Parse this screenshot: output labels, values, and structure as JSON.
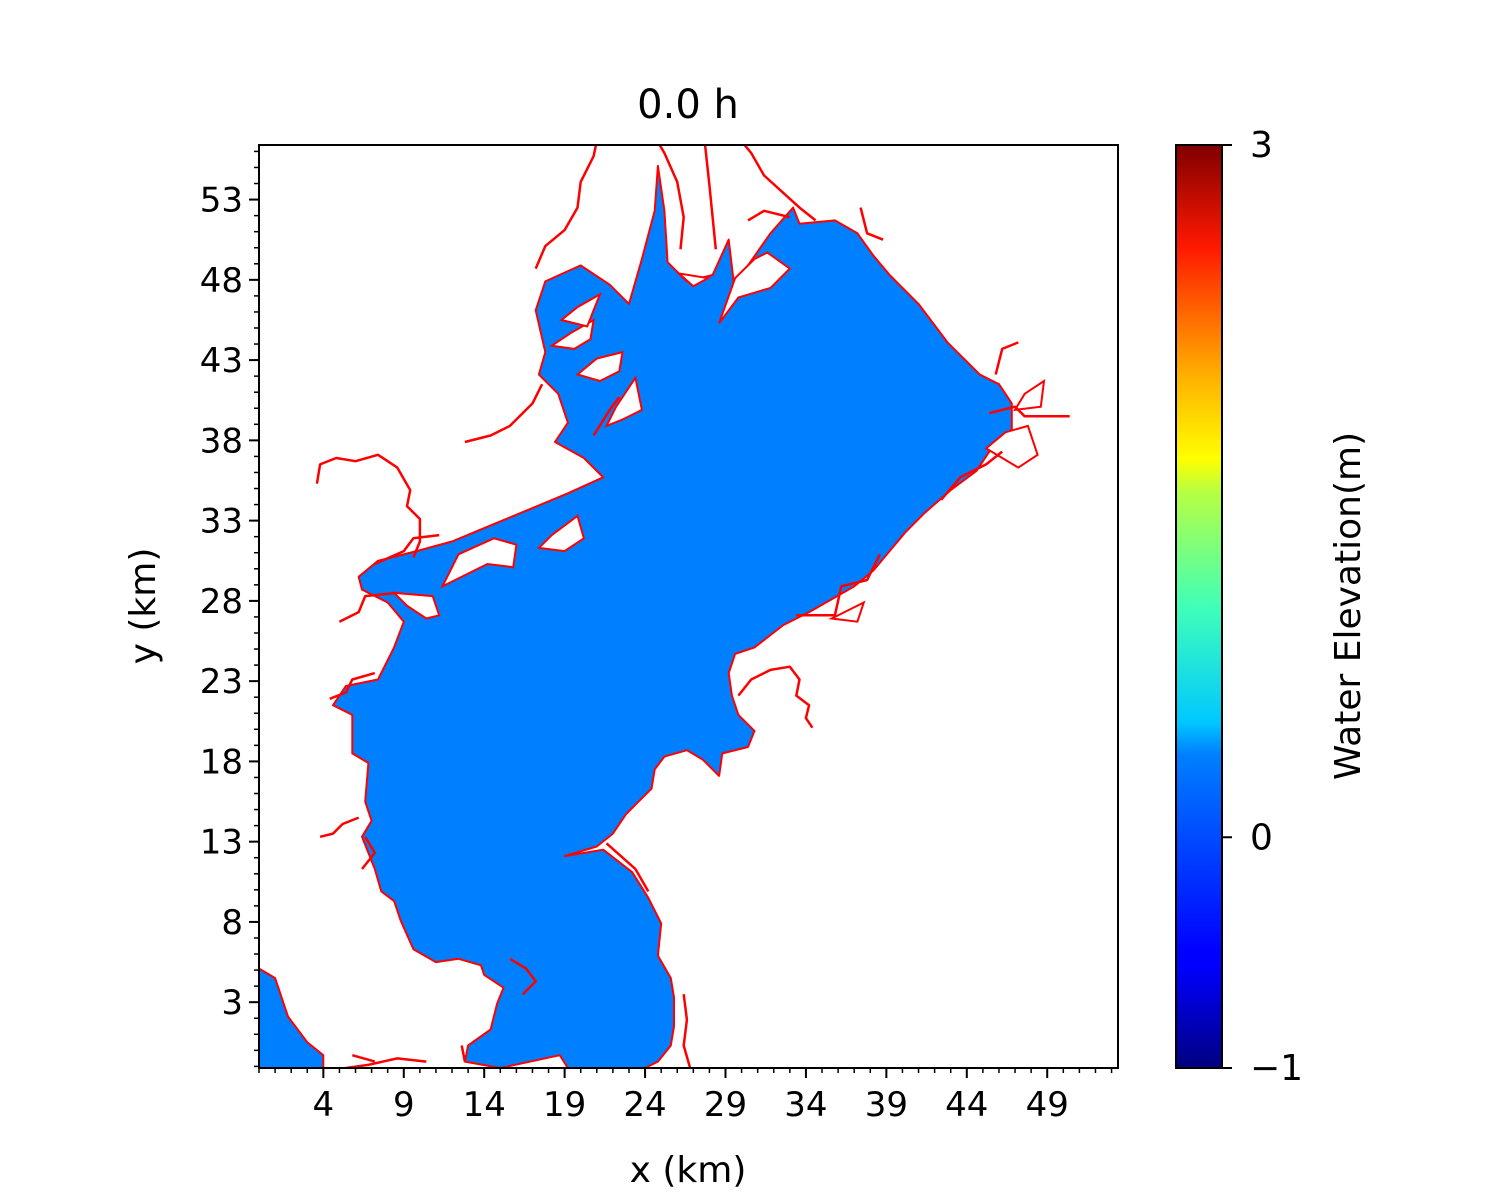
{
  "chart_data": {
    "type": "map",
    "title": "0.0 h",
    "xlabel": "x (km)",
    "ylabel": "y (km)",
    "xlim": [
      0,
      53.4
    ],
    "ylim": [
      -1.1,
      56.4
    ],
    "xticks": [
      4,
      9,
      14,
      19,
      24,
      29,
      34,
      39,
      44,
      49
    ],
    "yticks": [
      3,
      8,
      13,
      18,
      23,
      28,
      33,
      38,
      43,
      48,
      53
    ],
    "minor_tick_step": 1,
    "grid": false,
    "water_elevation_m": 0.0,
    "fill_color": "#0080ff",
    "shoreline_color": "#ff0000",
    "colorbar": {
      "label": "Water Elevation(m)",
      "colormap": "jet",
      "vmin": -1,
      "vmax": 3,
      "ticks": [
        -1,
        0,
        3
      ],
      "tick_labels": [
        "−1",
        "0",
        "3"
      ]
    },
    "water_polygon": [
      [
        19.2,
        -1.1
      ],
      [
        18.7,
        -0.3
      ],
      [
        15,
        -1.1
      ],
      [
        12.8,
        -0.7
      ],
      [
        13,
        0.3
      ],
      [
        14.4,
        1.3
      ],
      [
        14.8,
        2.9
      ],
      [
        15.2,
        3.9
      ],
      [
        14,
        4.7
      ],
      [
        13.8,
        5.3
      ],
      [
        12.4,
        5.7
      ],
      [
        11,
        5.5
      ],
      [
        9.6,
        6.3
      ],
      [
        8.8,
        8.1
      ],
      [
        8.4,
        9.3
      ],
      [
        7.6,
        9.9
      ],
      [
        7.2,
        11.3
      ],
      [
        6.4,
        13.3
      ],
      [
        7,
        14.3
      ],
      [
        6.6,
        15.5
      ],
      [
        6.8,
        17.9
      ],
      [
        5.8,
        18.5
      ],
      [
        5.8,
        20.9
      ],
      [
        4.6,
        21.5
      ],
      [
        5.4,
        22.7
      ],
      [
        7.4,
        23.1
      ],
      [
        8.4,
        25.1
      ],
      [
        9,
        26.7
      ],
      [
        8,
        27.9
      ],
      [
        6.4,
        28.7
      ],
      [
        6.2,
        29.5
      ],
      [
        7.4,
        30.5
      ],
      [
        9.8,
        31.1
      ],
      [
        12,
        31.7
      ],
      [
        14.4,
        32.7
      ],
      [
        16.8,
        33.7
      ],
      [
        19.2,
        34.7
      ],
      [
        21.4,
        35.7
      ],
      [
        20.2,
        36.9
      ],
      [
        18.4,
        37.9
      ],
      [
        19.2,
        39.1
      ],
      [
        18.6,
        40.9
      ],
      [
        17.4,
        42.1
      ],
      [
        17.8,
        43.5
      ],
      [
        17.2,
        46.1
      ],
      [
        17.8,
        47.9
      ],
      [
        20,
        48.9
      ],
      [
        21.8,
        47.7
      ],
      [
        23,
        46.5
      ],
      [
        23.8,
        49.3
      ],
      [
        24.6,
        52.3
      ],
      [
        24.8,
        55.1
      ],
      [
        25.2,
        52.3
      ],
      [
        25.4,
        49.1
      ],
      [
        26.6,
        47.9
      ],
      [
        28.2,
        48.3
      ],
      [
        29.2,
        50.5
      ],
      [
        29.6,
        47.1
      ],
      [
        30.4,
        48.9
      ],
      [
        31.8,
        50.9
      ],
      [
        33.2,
        52.5
      ],
      [
        33.6,
        51.5
      ],
      [
        35.8,
        51.7
      ],
      [
        37.2,
        50.9
      ],
      [
        38.2,
        49.5
      ],
      [
        39.2,
        48.3
      ],
      [
        41,
        46.5
      ],
      [
        42.8,
        44.1
      ],
      [
        44.8,
        42.1
      ],
      [
        46,
        41.5
      ],
      [
        46.8,
        40.3
      ],
      [
        46.8,
        38.7
      ],
      [
        45.4,
        37.3
      ],
      [
        44.6,
        36.1
      ],
      [
        43,
        34.9
      ],
      [
        41.4,
        33.5
      ],
      [
        40.2,
        32.3
      ],
      [
        39.2,
        31.1
      ],
      [
        38.2,
        29.9
      ],
      [
        37,
        28.9
      ],
      [
        35.6,
        28.1
      ],
      [
        34.2,
        27.3
      ],
      [
        32.6,
        26.5
      ],
      [
        30.8,
        25.1
      ],
      [
        29.6,
        24.7
      ],
      [
        29.2,
        23.5
      ],
      [
        29.4,
        22.1
      ],
      [
        29.8,
        20.9
      ],
      [
        30.8,
        19.9
      ],
      [
        30.4,
        18.9
      ],
      [
        28.8,
        18.5
      ],
      [
        28.6,
        17.1
      ],
      [
        27.6,
        18.1
      ],
      [
        26.6,
        18.7
      ],
      [
        25.2,
        18.3
      ],
      [
        24.6,
        17.5
      ],
      [
        24.4,
        16.3
      ],
      [
        23.4,
        15.3
      ],
      [
        22.8,
        14.7
      ],
      [
        22,
        13.5
      ],
      [
        21,
        12.7
      ],
      [
        19,
        12.1
      ],
      [
        21.4,
        12.5
      ],
      [
        23.2,
        11.1
      ],
      [
        24.2,
        9.5
      ],
      [
        25,
        7.9
      ],
      [
        24.8,
        5.9
      ],
      [
        25.6,
        4.5
      ],
      [
        25.8,
        3.3
      ],
      [
        25.8,
        1.5
      ],
      [
        25.6,
        0.3
      ],
      [
        24.8,
        -0.7
      ],
      [
        24,
        -1.1
      ]
    ],
    "water_polygon_sw": [
      [
        0,
        -1.1
      ],
      [
        0,
        5.1
      ],
      [
        1,
        4.5
      ],
      [
        1.8,
        2.1
      ],
      [
        3,
        0.5
      ],
      [
        4,
        -0.3
      ],
      [
        4,
        -1.1
      ]
    ],
    "shoreline_paths": [
      [
        [
          5.4,
          -1.1
        ],
        [
          6.8,
          -0.9
        ],
        [
          8.6,
          -0.5
        ],
        [
          10.4,
          -0.7
        ]
      ],
      [
        [
          5.8,
          -0.3
        ],
        [
          7.2,
          -0.7
        ]
      ],
      [
        [
          26.8,
          -1.1
        ],
        [
          26.4,
          0.3
        ],
        [
          26.6,
          1.9
        ],
        [
          26.4,
          3.5
        ]
      ],
      [
        [
          12.8,
          -0.7
        ],
        [
          12.6,
          0.3
        ]
      ],
      [
        [
          21.6,
          12.9
        ],
        [
          23.4,
          11.3
        ],
        [
          24.2,
          9.9
        ]
      ],
      [
        [
          3.6,
          35.3
        ],
        [
          3.8,
          36.5
        ],
        [
          4.8,
          36.9
        ],
        [
          6,
          36.7
        ],
        [
          7.4,
          37.1
        ],
        [
          8.6,
          36.3
        ],
        [
          9.4,
          34.9
        ],
        [
          9.2,
          33.9
        ],
        [
          10,
          33.1
        ],
        [
          10,
          31.7
        ],
        [
          9.6,
          30.7
        ]
      ],
      [
        [
          29.8,
          22.1
        ],
        [
          30.6,
          23.1
        ],
        [
          31.8,
          23.7
        ],
        [
          33,
          23.9
        ],
        [
          33.6,
          23.1
        ],
        [
          33.4,
          22.1
        ],
        [
          34.2,
          21.5
        ],
        [
          34,
          20.7
        ],
        [
          34.4,
          20.1
        ]
      ],
      [
        [
          21.2,
          57.6
        ],
        [
          20.8,
          55.7
        ],
        [
          20,
          54.1
        ],
        [
          19.8,
          52.5
        ],
        [
          19,
          51.1
        ],
        [
          17.8,
          50.1
        ],
        [
          17.2,
          48.7
        ]
      ],
      [
        [
          24.2,
          57.6
        ],
        [
          25.2,
          55.9
        ],
        [
          26,
          54.1
        ],
        [
          26.4,
          51.9
        ],
        [
          26.2,
          49.9
        ]
      ],
      [
        [
          27.6,
          57.6
        ],
        [
          28,
          53.9
        ],
        [
          28.4,
          49.9
        ]
      ],
      [
        [
          29.2,
          57.6
        ],
        [
          30.6,
          55.9
        ],
        [
          31.4,
          54.5
        ],
        [
          33.6,
          52.5
        ],
        [
          34.6,
          51.7
        ]
      ],
      [
        [
          30.4,
          51.7
        ],
        [
          31.4,
          52.3
        ],
        [
          33,
          51.9
        ]
      ],
      [
        [
          12.8,
          37.9
        ],
        [
          14.4,
          38.3
        ],
        [
          15.6,
          38.9
        ],
        [
          17,
          40.3
        ],
        [
          17.6,
          41.5
        ]
      ],
      [
        [
          6.4,
          11.3
        ],
        [
          7.2,
          12.3
        ],
        [
          6.6,
          13.3
        ]
      ],
      [
        [
          3.8,
          13.3
        ],
        [
          4.6,
          13.5
        ],
        [
          5.2,
          14.1
        ],
        [
          6.2,
          14.5
        ]
      ],
      [
        [
          4.4,
          21.9
        ],
        [
          5.4,
          22.3
        ],
        [
          5.8,
          23.1
        ],
        [
          7.2,
          23.5
        ]
      ],
      [
        [
          5,
          26.7
        ],
        [
          6.2,
          27.3
        ],
        [
          6.6,
          28.3
        ],
        [
          8.6,
          28.5
        ]
      ],
      [
        [
          7.2,
          30.3
        ],
        [
          9,
          31.1
        ],
        [
          9.6,
          31.9
        ],
        [
          11.2,
          32.1
        ]
      ],
      [
        [
          20.8,
          38.3
        ],
        [
          21.8,
          39.9
        ],
        [
          22.4,
          40.7
        ]
      ],
      [
        [
          33.4,
          27.1
        ],
        [
          35.8,
          27.1
        ],
        [
          36.2,
          28.9
        ],
        [
          37.8,
          29.3
        ],
        [
          38.6,
          30.9
        ]
      ],
      [
        [
          42.4,
          34.3
        ],
        [
          43.6,
          35.7
        ],
        [
          45.2,
          36.5
        ],
        [
          46.2,
          37.3
        ]
      ],
      [
        [
          45.4,
          39.7
        ],
        [
          47,
          40.1
        ],
        [
          47.6,
          39.5
        ],
        [
          50.4,
          39.5
        ]
      ],
      [
        [
          45.8,
          42.1
        ],
        [
          46.2,
          43.7
        ],
        [
          47.2,
          44.1
        ]
      ],
      [
        [
          37.4,
          52.5
        ],
        [
          37.8,
          50.9
        ],
        [
          38.8,
          50.5
        ]
      ],
      [
        [
          15.6,
          5.7
        ],
        [
          16.6,
          5.1
        ],
        [
          17.2,
          4.3
        ],
        [
          16.4,
          3.5
        ]
      ]
    ],
    "land_islands": [
      [
        [
          11.4,
          28.9
        ],
        [
          14.2,
          30.3
        ],
        [
          15.8,
          30.1
        ],
        [
          16,
          31.5
        ],
        [
          14.6,
          31.9
        ],
        [
          12.4,
          30.9
        ]
      ],
      [
        [
          8.4,
          28.5
        ],
        [
          10.8,
          28.3
        ],
        [
          11.2,
          27.1
        ],
        [
          10.4,
          26.9
        ],
        [
          9.2,
          27.7
        ]
      ],
      [
        [
          17.4,
          31.3
        ],
        [
          18.2,
          32.1
        ],
        [
          19.8,
          33.3
        ],
        [
          20.2,
          31.9
        ],
        [
          19,
          31.1
        ]
      ],
      [
        [
          21.6,
          38.9
        ],
        [
          22.2,
          40.1
        ],
        [
          23.4,
          41.9
        ],
        [
          23.8,
          39.9
        ],
        [
          22.6,
          39.3
        ]
      ],
      [
        [
          19.8,
          42.1
        ],
        [
          21,
          43.1
        ],
        [
          22.6,
          43.5
        ],
        [
          22.4,
          42.3
        ],
        [
          21.2,
          41.7
        ]
      ],
      [
        [
          18.2,
          43.9
        ],
        [
          19.4,
          44.7
        ],
        [
          20.8,
          45.5
        ],
        [
          20.6,
          44.3
        ],
        [
          19.6,
          43.7
        ]
      ],
      [
        [
          18.8,
          45.5
        ],
        [
          19.8,
          46.3
        ],
        [
          21.2,
          47.1
        ],
        [
          20.4,
          45.1
        ]
      ],
      [
        [
          28.6,
          45.3
        ],
        [
          29.8,
          46.9
        ],
        [
          31.8,
          47.5
        ],
        [
          33,
          48.7
        ],
        [
          31.6,
          49.7
        ],
        [
          30.8,
          49.3
        ],
        [
          29.6,
          48.1
        ]
      ],
      [
        [
          45.2,
          37.5
        ],
        [
          46.4,
          38.5
        ],
        [
          47.8,
          38.9
        ],
        [
          48.4,
          37.1
        ],
        [
          47.2,
          36.3
        ]
      ],
      [
        [
          47,
          39.9
        ],
        [
          47.6,
          40.9
        ],
        [
          48.8,
          41.7
        ],
        [
          48.6,
          40.1
        ]
      ],
      [
        [
          35.6,
          26.9
        ],
        [
          36.8,
          27.5
        ],
        [
          37.6,
          27.9
        ],
        [
          37.2,
          26.7
        ]
      ],
      [
        [
          26.1,
          48.4
        ],
        [
          27,
          47.6
        ],
        [
          27.9,
          48.1
        ]
      ]
    ]
  }
}
